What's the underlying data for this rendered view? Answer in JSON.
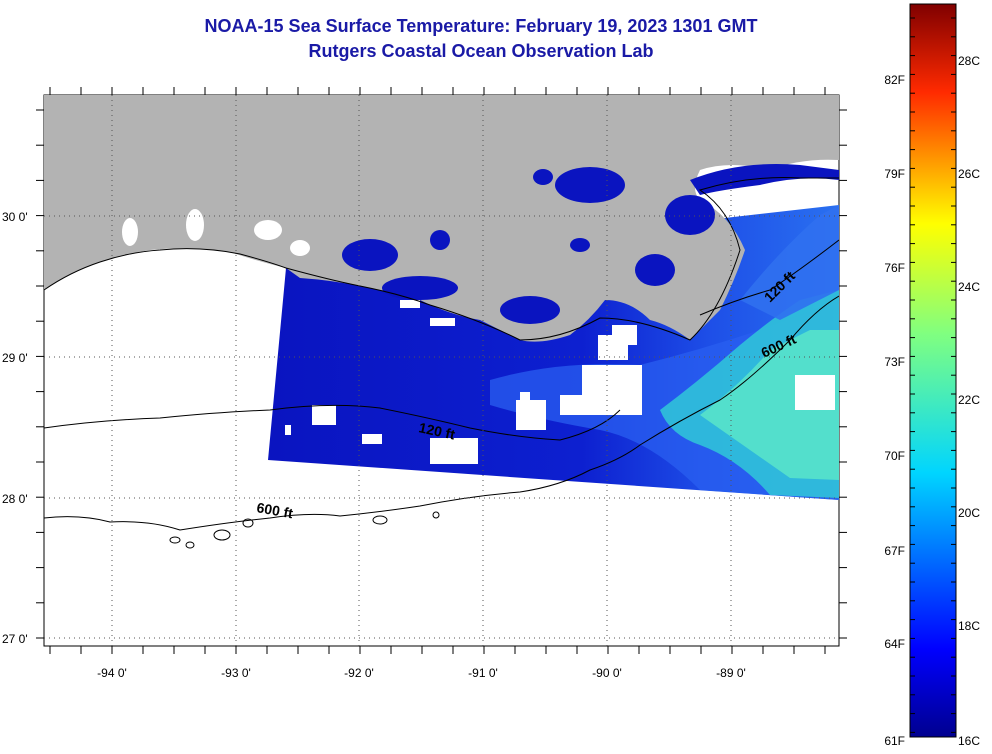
{
  "header": {
    "title": "NOAA-15 Sea Surface Temperature:  February 19, 2023 1301 GMT",
    "subtitle": "Rutgers Coastal Ocean Observation Lab"
  },
  "map": {
    "lat_labels": [
      "30 0'",
      "29 0'",
      "28 0'",
      "27 0'"
    ],
    "lon_labels": [
      "-94 0'",
      "-93 0'",
      "-92 0'",
      "-91 0'",
      "-90 0'",
      "-89 0'"
    ],
    "contour_labels": {
      "c120_west": "120 ft",
      "c600_west": "600 ft",
      "c120_east": "120 ft",
      "c600_east": "600 ft"
    },
    "colors": {
      "land": "#b3b3b3",
      "cold_water": "#0a14c0",
      "shelf_water": "#2a5ff0",
      "warm_water": "#40e0d0",
      "cloud": "#ffffff"
    }
  },
  "colorbar": {
    "f_labels": [
      "82F",
      "79F",
      "76F",
      "73F",
      "70F",
      "67F",
      "64F",
      "61F"
    ],
    "c_labels": [
      "28C",
      "26C",
      "24C",
      "22C",
      "20C",
      "18C",
      "16C"
    ]
  }
}
